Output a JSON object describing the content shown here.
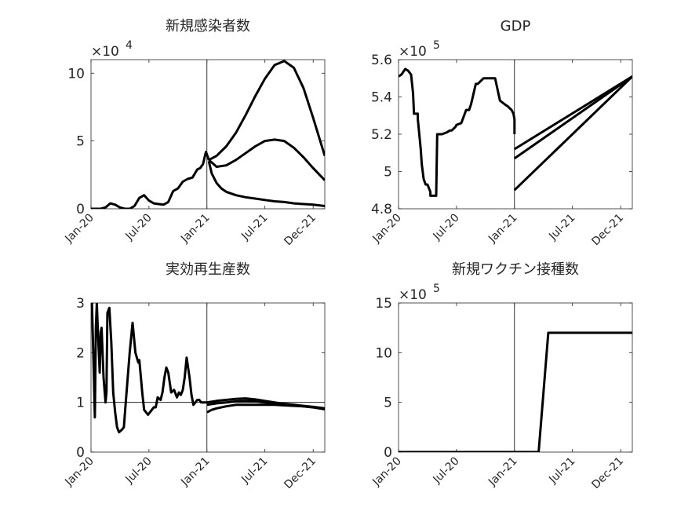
{
  "figure": {
    "x_tick_labels": [
      "Jan-20",
      "Jul-20",
      "Jan-21",
      "Jul-21",
      "Dec-21"
    ],
    "x_tick_months": [
      0,
      6,
      12,
      18,
      23
    ],
    "vline_month": 12
  },
  "chart_data": [
    {
      "type": "line",
      "title": "新規感染者数",
      "multiplier_label": "×10",
      "multiplier_exp": "4",
      "ylim": [
        0,
        11
      ],
      "yticks": [
        0,
        5,
        10
      ],
      "ytick_labels": [
        "0",
        "5",
        "10"
      ],
      "x_range_months": [
        0,
        24.2
      ],
      "history": {
        "x": [
          0,
          1,
          1.5,
          2,
          2.5,
          3,
          3.5,
          4,
          4.5,
          5,
          5.5,
          6,
          6.5,
          7,
          7.5,
          8,
          8.5,
          9,
          9.5,
          10,
          10.5,
          11,
          11.3,
          11.6,
          11.9,
          12,
          12.2
        ],
        "y": [
          0,
          0,
          0.1,
          0.4,
          0.3,
          0.1,
          0,
          0,
          0.2,
          0.8,
          1.0,
          0.6,
          0.4,
          0.35,
          0.3,
          0.5,
          1.3,
          1.5,
          2.0,
          2.2,
          2.3,
          2.9,
          3.0,
          3.3,
          4.2,
          4.0,
          3.6
        ]
      },
      "series": [
        {
          "x": [
            12.2,
            13,
            14,
            15,
            16,
            17,
            18,
            19,
            20,
            21,
            22,
            23,
            24.2
          ],
          "y": [
            3.6,
            3.9,
            4.6,
            5.6,
            6.9,
            8.3,
            9.6,
            10.6,
            10.9,
            10.4,
            8.9,
            6.7,
            3.9
          ]
        },
        {
          "x": [
            12.2,
            13,
            14,
            15,
            16,
            17,
            18,
            19,
            20,
            21,
            22,
            23,
            24.2
          ],
          "y": [
            3.6,
            3.1,
            3.2,
            3.6,
            4.1,
            4.6,
            5.0,
            5.1,
            5.0,
            4.5,
            3.8,
            3.0,
            2.1
          ]
        },
        {
          "x": [
            12.2,
            12.5,
            13,
            13.5,
            14,
            15,
            16,
            17,
            18,
            19,
            20,
            21,
            22,
            23,
            24.2
          ],
          "y": [
            3.5,
            2.6,
            1.9,
            1.5,
            1.25,
            1.0,
            0.85,
            0.75,
            0.65,
            0.55,
            0.5,
            0.4,
            0.35,
            0.3,
            0.2
          ]
        }
      ]
    },
    {
      "type": "line",
      "title": "GDP",
      "multiplier_label": "×10",
      "multiplier_exp": "5",
      "ylim": [
        4.8,
        5.6
      ],
      "yticks": [
        4.8,
        5.0,
        5.2,
        5.4,
        5.6
      ],
      "ytick_labels": [
        "4.8",
        "5",
        "5.2",
        "5.4",
        "5.6"
      ],
      "x_range_months": [
        0,
        24.2
      ],
      "history": {
        "x": [
          0,
          0.3,
          0.7,
          1.0,
          1.3,
          1.5,
          1.6,
          2.0,
          2.0,
          2.3,
          2.4,
          2.6,
          2.8,
          3.0,
          3.3,
          3.3,
          3.6,
          3.9,
          4.0,
          4.5,
          5.0,
          5.3,
          5.5,
          5.9,
          6.0,
          6.5,
          7.0,
          7.3,
          7.5,
          8.0,
          8.2,
          8.8,
          9.0,
          9.5,
          10.0,
          10.5,
          11.0,
          11.3,
          11.7,
          11.9,
          12.0,
          12.0
        ],
        "y": [
          5.51,
          5.52,
          5.55,
          5.54,
          5.52,
          5.42,
          5.31,
          5.31,
          5.28,
          5.12,
          5.04,
          4.96,
          4.93,
          4.93,
          4.89,
          4.87,
          4.87,
          4.87,
          5.2,
          5.2,
          5.21,
          5.22,
          5.22,
          5.24,
          5.25,
          5.26,
          5.33,
          5.33,
          5.36,
          5.47,
          5.47,
          5.5,
          5.5,
          5.5,
          5.5,
          5.38,
          5.36,
          5.35,
          5.33,
          5.31,
          5.28,
          5.2
        ]
      },
      "series": [
        {
          "x": [
            12.0,
            24.2
          ],
          "y": [
            5.12,
            5.51
          ]
        },
        {
          "x": [
            12.0,
            24.2
          ],
          "y": [
            5.07,
            5.51
          ]
        },
        {
          "x": [
            12.0,
            24.2
          ],
          "y": [
            4.9,
            5.51
          ]
        }
      ]
    },
    {
      "type": "line",
      "title": "実効再生産数",
      "ylim": [
        0,
        3
      ],
      "yticks": [
        0,
        1,
        2,
        3
      ],
      "ytick_labels": [
        "0",
        "1",
        "2",
        "3"
      ],
      "hline": 1,
      "x_range_months": [
        0,
        24.2
      ],
      "history": {
        "x": [
          0.1,
          0.3,
          0.4,
          0.5,
          0.6,
          0.7,
          0.9,
          1.0,
          1.1,
          1.3,
          1.5,
          1.6,
          1.7,
          1.9,
          2.1,
          2.3,
          2.5,
          2.7,
          2.9,
          3.2,
          3.4,
          3.6,
          3.8,
          4.0,
          4.3,
          4.6,
          4.9,
          5.0,
          5.3,
          5.5,
          5.7,
          5.9,
          6.1,
          6.3,
          6.5,
          6.7,
          6.9,
          7.2,
          7.4,
          7.6,
          7.8,
          8.0,
          8.3,
          8.6,
          8.9,
          9.1,
          9.3,
          9.5,
          9.7,
          9.9,
          10.2,
          10.4,
          10.6,
          10.8,
          11.0,
          11.2,
          11.4,
          11.6,
          11.8,
          11.9,
          12.0
        ],
        "y": [
          3.0,
          1.5,
          0.7,
          2.5,
          3.0,
          2.5,
          1.6,
          2.4,
          2.5,
          1.5,
          1.0,
          1.2,
          2.8,
          2.9,
          2.2,
          1.2,
          0.8,
          0.5,
          0.4,
          0.45,
          0.5,
          1.0,
          1.5,
          2.0,
          2.6,
          2.0,
          1.8,
          1.85,
          1.2,
          0.85,
          0.8,
          0.75,
          0.8,
          0.85,
          0.9,
          0.9,
          1.1,
          1.05,
          1.2,
          1.5,
          1.7,
          1.6,
          1.2,
          1.25,
          1.1,
          1.2,
          1.15,
          1.25,
          1.5,
          1.9,
          1.5,
          1.15,
          0.95,
          1.0,
          1.05,
          1.05,
          1.0,
          1.0,
          1.0,
          1.0,
          1.0
        ]
      },
      "series": [
        {
          "x": [
            12.0,
            13,
            14,
            15,
            16,
            17,
            18,
            19,
            20,
            21,
            22,
            23,
            24.2
          ],
          "y": [
            1.0,
            1.03,
            1.05,
            1.07,
            1.08,
            1.06,
            1.03,
            1.0,
            0.97,
            0.95,
            0.93,
            0.91,
            0.88
          ]
        },
        {
          "x": [
            12.0,
            13,
            14,
            15,
            16,
            17,
            18,
            19,
            20,
            21,
            22,
            23,
            24.2
          ],
          "y": [
            0.95,
            0.98,
            1.0,
            1.02,
            1.03,
            1.02,
            1.0,
            0.98,
            0.96,
            0.94,
            0.92,
            0.9,
            0.87
          ]
        },
        {
          "x": [
            12.0,
            12.5,
            13,
            14,
            15,
            16,
            17,
            18,
            19,
            20,
            21,
            22,
            23,
            24.2
          ],
          "y": [
            0.8,
            0.85,
            0.88,
            0.92,
            0.95,
            0.95,
            0.95,
            0.95,
            0.95,
            0.94,
            0.93,
            0.92,
            0.9,
            0.86
          ]
        }
      ]
    },
    {
      "type": "line",
      "title": "新規ワクチン接種数",
      "multiplier_label": "×10",
      "multiplier_exp": "5",
      "ylim": [
        0,
        15
      ],
      "yticks": [
        0,
        5,
        10,
        15
      ],
      "ytick_labels": [
        "0",
        "5",
        "10",
        "15"
      ],
      "x_range_months": [
        0,
        24.2
      ],
      "history": {
        "x": [
          0,
          12.0
        ],
        "y": [
          0,
          0
        ]
      },
      "series": [
        {
          "x": [
            12.0,
            14.5,
            15.5,
            24.2
          ],
          "y": [
            0,
            0,
            12,
            12
          ]
        }
      ]
    }
  ]
}
